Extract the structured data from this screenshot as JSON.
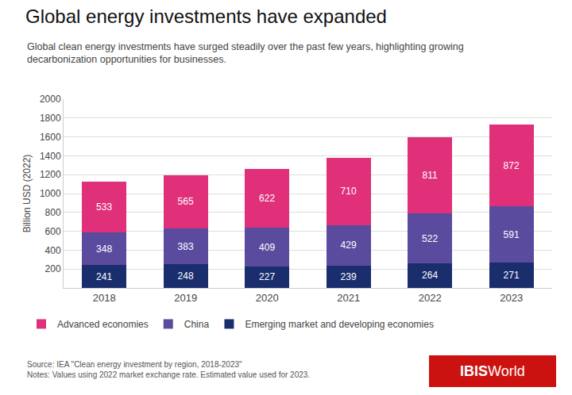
{
  "chart_data": {
    "type": "bar",
    "stacked": true,
    "title": "Global energy investments have expanded",
    "subtitle": "Global clean energy investments have surged steadily over the past few years, highlighting growing\ndecarbonization opportunities for businesses.",
    "ylabel": "Billion USD (2022)",
    "annotations": [
      "Source: IEA \"Clean energy investment by region, 2018-2023\"\nNotes: Values using 2022 market exchange rate. Estimated value used for 2023.",
      "IBIS",
      "World"
    ],
    "categories": [
      "2018",
      "2019",
      "2020",
      "2021",
      "2022",
      "2023"
    ],
    "series": [
      {
        "name": "Emerging market and developing economies",
        "color": "#1a2e6e",
        "values": [
          241,
          248,
          227,
          239,
          264,
          271
        ]
      },
      {
        "name": "China",
        "color": "#5b4b9e",
        "values": [
          348,
          383,
          409,
          429,
          522,
          591
        ]
      },
      {
        "name": "Advanced economies",
        "color": "#e0307a",
        "values": [
          533,
          565,
          622,
          710,
          811,
          872
        ]
      }
    ],
    "ylim": [
      0,
      2000
    ],
    "yticks": [
      200,
      400,
      600,
      800,
      1000,
      1200,
      1400,
      1600,
      1800,
      2000
    ],
    "grid": true,
    "legend": "bottom",
    "data_labels": true
  }
}
